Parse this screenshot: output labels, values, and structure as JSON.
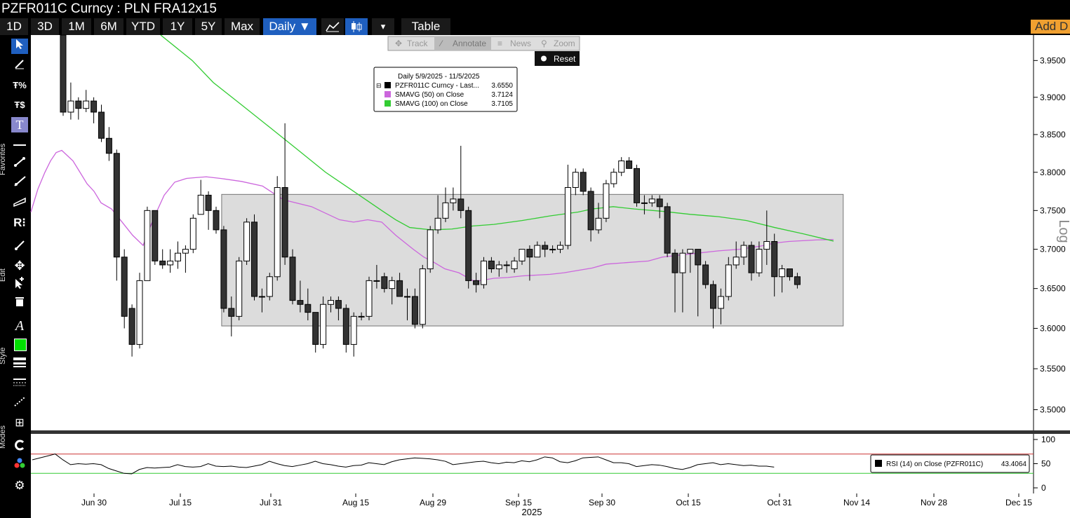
{
  "header": {
    "title": "PZFR011C Curncy : PLN FRA12x15",
    "add_data": "Add D"
  },
  "toolbar": {
    "ranges": [
      "1D",
      "3D",
      "1M",
      "6M",
      "YTD",
      "1Y",
      "5Y",
      "Max"
    ],
    "frequency": "Daily ▼",
    "table_label": "Table",
    "dropdown_arrow": "▾"
  },
  "chart_tools": {
    "track": "Track",
    "annotate": "Annotate",
    "news": "News",
    "zoom": "Zoom",
    "reset": "Reset"
  },
  "side_labels": {
    "favorites": "Favorites",
    "edit": "Edit",
    "style": "Style",
    "modes": "Modes"
  },
  "icons": [
    "cursor-icon",
    "pen-icon",
    "percent-trend-icon",
    "dollar-trend-icon",
    "text-icon",
    "horizontal-line-icon",
    "trend-line-icon",
    "ray-icon",
    "channel-icon",
    "r-menu-icon",
    "brush-icon",
    "move-icon",
    "add-cursor-icon",
    "trash-icon",
    "font-icon",
    "color-swatch-icon",
    "line-width-icon",
    "line-style-icon",
    "lasso-icon",
    "layout-icon",
    "refresh-mode-icon",
    "dots-mode-icon",
    "settings-gear-icon"
  ],
  "colors": {
    "background": "#ffffff",
    "up_candle": "#ffffff",
    "down_candle": "#333333",
    "sma50": "#cc66dd",
    "sma100": "#33cc33",
    "rectangle": "#d9d9d9",
    "rsi_upper": "#cc3333",
    "rsi_lower": "#33cc33",
    "accent": "#1f5fbf"
  },
  "legend": {
    "header": "Daily 5/9/2025 - 11/5/2025",
    "rows": [
      {
        "label": "PZFR011C Curncy - Last...",
        "value": "3.6550",
        "color": "#000000"
      },
      {
        "label": "SMAVG (50)  on Close",
        "value": "3.7124",
        "color": "#cc66dd"
      },
      {
        "label": "SMAVG (100)  on Close",
        "value": "3.7105",
        "color": "#33cc33"
      }
    ]
  },
  "rsi_legend": {
    "label": "RSI (14)  on Close (PZFR011C)",
    "value": "43.4064"
  },
  "log_label": "Log",
  "chart_data": {
    "type": "candlestick",
    "scale": "log",
    "ylim": [
      3.475,
      3.985
    ],
    "y_ticks": [
      "3.9500",
      "3.9000",
      "3.8500",
      "3.8000",
      "3.7500",
      "3.7000",
      "3.6500",
      "3.6000",
      "3.5500",
      "3.5000"
    ],
    "x_ticks": [
      "Jun 30",
      "Jul 15",
      "Jul 31",
      "Aug 15",
      "Aug 29",
      "Sep 15",
      "Sep 30",
      "Oct 15",
      "Oct 31",
      "Nov 14",
      "Nov 28",
      "Dec 15"
    ],
    "year_label": "2025",
    "candles": [
      {
        "o": 3.985,
        "h": 3.995,
        "l": 3.875,
        "c": 3.88
      },
      {
        "o": 3.88,
        "h": 3.92,
        "l": 3.87,
        "c": 3.895
      },
      {
        "o": 3.895,
        "h": 3.9,
        "l": 3.87,
        "c": 3.885
      },
      {
        "o": 3.885,
        "h": 3.91,
        "l": 3.88,
        "c": 3.895
      },
      {
        "o": 3.895,
        "h": 3.9,
        "l": 3.865,
        "c": 3.88
      },
      {
        "o": 3.88,
        "h": 3.89,
        "l": 3.84,
        "c": 3.845
      },
      {
        "o": 3.845,
        "h": 3.86,
        "l": 3.815,
        "c": 3.825
      },
      {
        "o": 3.825,
        "h": 3.83,
        "l": 3.66,
        "c": 3.69
      },
      {
        "o": 3.69,
        "h": 3.7,
        "l": 3.6,
        "c": 3.615
      },
      {
        "o": 3.625,
        "h": 3.63,
        "l": 3.565,
        "c": 3.58
      },
      {
        "o": 3.58,
        "h": 3.67,
        "l": 3.575,
        "c": 3.66
      },
      {
        "o": 3.66,
        "h": 3.755,
        "l": 3.66,
        "c": 3.75
      },
      {
        "o": 3.75,
        "h": 3.75,
        "l": 3.68,
        "c": 3.685
      },
      {
        "o": 3.685,
        "h": 3.7,
        "l": 3.675,
        "c": 3.68
      },
      {
        "o": 3.68,
        "h": 3.7,
        "l": 3.67,
        "c": 3.685
      },
      {
        "o": 3.685,
        "h": 3.71,
        "l": 3.675,
        "c": 3.695
      },
      {
        "o": 3.695,
        "h": 3.705,
        "l": 3.67,
        "c": 3.7
      },
      {
        "o": 3.7,
        "h": 3.745,
        "l": 3.695,
        "c": 3.74
      },
      {
        "o": 3.745,
        "h": 3.79,
        "l": 3.745,
        "c": 3.77
      },
      {
        "o": 3.77,
        "h": 3.775,
        "l": 3.725,
        "c": 3.75
      },
      {
        "o": 3.75,
        "h": 3.755,
        "l": 3.72,
        "c": 3.725
      },
      {
        "o": 3.725,
        "h": 3.73,
        "l": 3.62,
        "c": 3.625
      },
      {
        "o": 3.625,
        "h": 3.64,
        "l": 3.59,
        "c": 3.615
      },
      {
        "o": 3.615,
        "h": 3.69,
        "l": 3.61,
        "c": 3.685
      },
      {
        "o": 3.685,
        "h": 3.74,
        "l": 3.68,
        "c": 3.735
      },
      {
        "o": 3.735,
        "h": 3.745,
        "l": 3.635,
        "c": 3.64
      },
      {
        "o": 3.64,
        "h": 3.65,
        "l": 3.62,
        "c": 3.64
      },
      {
        "o": 3.64,
        "h": 3.67,
        "l": 3.635,
        "c": 3.665
      },
      {
        "o": 3.665,
        "h": 3.795,
        "l": 3.66,
        "c": 3.78
      },
      {
        "o": 3.78,
        "h": 3.865,
        "l": 3.68,
        "c": 3.69
      },
      {
        "o": 3.69,
        "h": 3.7,
        "l": 3.63,
        "c": 3.635
      },
      {
        "o": 3.635,
        "h": 3.66,
        "l": 3.62,
        "c": 3.63
      },
      {
        "o": 3.63,
        "h": 3.65,
        "l": 3.61,
        "c": 3.62
      },
      {
        "o": 3.62,
        "h": 3.62,
        "l": 3.57,
        "c": 3.58
      },
      {
        "o": 3.58,
        "h": 3.64,
        "l": 3.575,
        "c": 3.63
      },
      {
        "o": 3.63,
        "h": 3.64,
        "l": 3.62,
        "c": 3.635
      },
      {
        "o": 3.635,
        "h": 3.64,
        "l": 3.61,
        "c": 3.625
      },
      {
        "o": 3.625,
        "h": 3.63,
        "l": 3.57,
        "c": 3.58
      },
      {
        "o": 3.58,
        "h": 3.62,
        "l": 3.565,
        "c": 3.615
      },
      {
        "o": 3.615,
        "h": 3.62,
        "l": 3.61,
        "c": 3.615
      },
      {
        "o": 3.615,
        "h": 3.665,
        "l": 3.61,
        "c": 3.66
      },
      {
        "o": 3.66,
        "h": 3.68,
        "l": 3.65,
        "c": 3.66
      },
      {
        "o": 3.665,
        "h": 3.67,
        "l": 3.645,
        "c": 3.65
      },
      {
        "o": 3.65,
        "h": 3.665,
        "l": 3.63,
        "c": 3.66
      },
      {
        "o": 3.66,
        "h": 3.67,
        "l": 3.64,
        "c": 3.64
      },
      {
        "o": 3.64,
        "h": 3.65,
        "l": 3.61,
        "c": 3.64
      },
      {
        "o": 3.64,
        "h": 3.65,
        "l": 3.6,
        "c": 3.605
      },
      {
        "o": 3.605,
        "h": 3.68,
        "l": 3.6,
        "c": 3.675
      },
      {
        "o": 3.675,
        "h": 3.73,
        "l": 3.67,
        "c": 3.725
      },
      {
        "o": 3.725,
        "h": 3.77,
        "l": 3.72,
        "c": 3.74
      },
      {
        "o": 3.74,
        "h": 3.78,
        "l": 3.735,
        "c": 3.76
      },
      {
        "o": 3.76,
        "h": 3.78,
        "l": 3.75,
        "c": 3.765
      },
      {
        "o": 3.765,
        "h": 3.835,
        "l": 3.74,
        "c": 3.75
      },
      {
        "o": 3.75,
        "h": 3.755,
        "l": 3.65,
        "c": 3.66
      },
      {
        "o": 3.66,
        "h": 3.67,
        "l": 3.645,
        "c": 3.655
      },
      {
        "o": 3.655,
        "h": 3.69,
        "l": 3.65,
        "c": 3.685
      },
      {
        "o": 3.685,
        "h": 3.69,
        "l": 3.67,
        "c": 3.675
      },
      {
        "o": 3.675,
        "h": 3.685,
        "l": 3.665,
        "c": 3.68
      },
      {
        "o": 3.68,
        "h": 3.685,
        "l": 3.67,
        "c": 3.68
      },
      {
        "o": 3.675,
        "h": 3.69,
        "l": 3.67,
        "c": 3.685
      },
      {
        "o": 3.685,
        "h": 3.7,
        "l": 3.68,
        "c": 3.7
      },
      {
        "o": 3.7,
        "h": 3.705,
        "l": 3.66,
        "c": 3.69
      },
      {
        "o": 3.69,
        "h": 3.71,
        "l": 3.69,
        "c": 3.705
      },
      {
        "o": 3.705,
        "h": 3.71,
        "l": 3.69,
        "c": 3.7
      },
      {
        "o": 3.7,
        "h": 3.705,
        "l": 3.695,
        "c": 3.7
      },
      {
        "o": 3.7,
        "h": 3.71,
        "l": 3.695,
        "c": 3.705
      },
      {
        "o": 3.705,
        "h": 3.81,
        "l": 3.7,
        "c": 3.78
      },
      {
        "o": 3.78,
        "h": 3.805,
        "l": 3.77,
        "c": 3.8
      },
      {
        "o": 3.8,
        "h": 3.805,
        "l": 3.77,
        "c": 3.775
      },
      {
        "o": 3.775,
        "h": 3.78,
        "l": 3.71,
        "c": 3.725
      },
      {
        "o": 3.725,
        "h": 3.76,
        "l": 3.72,
        "c": 3.74
      },
      {
        "o": 3.74,
        "h": 3.79,
        "l": 3.735,
        "c": 3.785
      },
      {
        "o": 3.785,
        "h": 3.805,
        "l": 3.78,
        "c": 3.8
      },
      {
        "o": 3.8,
        "h": 3.82,
        "l": 3.795,
        "c": 3.815
      },
      {
        "o": 3.815,
        "h": 3.82,
        "l": 3.805,
        "c": 3.805
      },
      {
        "o": 3.805,
        "h": 3.81,
        "l": 3.755,
        "c": 3.76
      },
      {
        "o": 3.76,
        "h": 3.77,
        "l": 3.745,
        "c": 3.76
      },
      {
        "o": 3.76,
        "h": 3.77,
        "l": 3.755,
        "c": 3.765
      },
      {
        "o": 3.765,
        "h": 3.77,
        "l": 3.74,
        "c": 3.755
      },
      {
        "o": 3.755,
        "h": 3.76,
        "l": 3.69,
        "c": 3.695
      },
      {
        "o": 3.695,
        "h": 3.7,
        "l": 3.62,
        "c": 3.67
      },
      {
        "o": 3.67,
        "h": 3.7,
        "l": 3.62,
        "c": 3.695
      },
      {
        "o": 3.695,
        "h": 3.7,
        "l": 3.67,
        "c": 3.7
      },
      {
        "o": 3.7,
        "h": 3.7,
        "l": 3.615,
        "c": 3.68
      },
      {
        "o": 3.68,
        "h": 3.685,
        "l": 3.65,
        "c": 3.655
      },
      {
        "o": 3.655,
        "h": 3.66,
        "l": 3.6,
        "c": 3.625
      },
      {
        "o": 3.625,
        "h": 3.65,
        "l": 3.605,
        "c": 3.64
      },
      {
        "o": 3.64,
        "h": 3.69,
        "l": 3.635,
        "c": 3.68
      },
      {
        "o": 3.68,
        "h": 3.71,
        "l": 3.675,
        "c": 3.69
      },
      {
        "o": 3.69,
        "h": 3.71,
        "l": 3.68,
        "c": 3.705
      },
      {
        "o": 3.705,
        "h": 3.71,
        "l": 3.66,
        "c": 3.67
      },
      {
        "o": 3.67,
        "h": 3.71,
        "l": 3.665,
        "c": 3.7
      },
      {
        "o": 3.7,
        "h": 3.75,
        "l": 3.68,
        "c": 3.71
      },
      {
        "o": 3.71,
        "h": 3.72,
        "l": 3.64,
        "c": 3.665
      },
      {
        "o": 3.665,
        "h": 3.68,
        "l": 3.645,
        "c": 3.675
      },
      {
        "o": 3.675,
        "h": 3.675,
        "l": 3.66,
        "c": 3.665
      },
      {
        "o": 3.665,
        "h": 3.67,
        "l": 3.65,
        "c": 3.655
      }
    ],
    "sma50": [
      [
        0,
        3.748
      ],
      [
        10,
        3.778
      ],
      [
        20,
        3.8
      ],
      [
        28,
        3.815
      ],
      [
        36,
        3.826
      ],
      [
        44,
        3.829
      ],
      [
        52,
        3.822
      ],
      [
        60,
        3.815
      ],
      [
        70,
        3.8
      ],
      [
        80,
        3.785
      ],
      [
        90,
        3.775
      ],
      [
        100,
        3.76
      ],
      [
        115,
        3.752
      ],
      [
        130,
        3.735
      ],
      [
        145,
        3.718
      ],
      [
        160,
        3.705
      ],
      [
        175,
        3.74
      ],
      [
        190,
        3.77
      ],
      [
        205,
        3.787
      ],
      [
        222,
        3.792
      ],
      [
        235,
        3.793
      ],
      [
        250,
        3.794
      ],
      [
        270,
        3.792
      ],
      [
        300,
        3.788
      ],
      [
        330,
        3.782
      ],
      [
        360,
        3.764
      ],
      [
        400,
        3.755
      ],
      [
        440,
        3.738
      ],
      [
        460,
        3.735
      ],
      [
        480,
        3.738
      ],
      [
        500,
        3.735
      ],
      [
        520,
        3.718
      ],
      [
        545,
        3.7
      ],
      [
        560,
        3.69
      ],
      [
        575,
        3.683
      ],
      [
        590,
        3.675
      ],
      [
        610,
        3.67
      ],
      [
        630,
        3.66
      ],
      [
        640,
        3.66
      ],
      [
        660,
        3.663
      ],
      [
        680,
        3.664
      ],
      [
        700,
        3.666
      ],
      [
        720,
        3.667
      ],
      [
        740,
        3.668
      ],
      [
        760,
        3.67
      ],
      [
        780,
        3.673
      ],
      [
        800,
        3.676
      ],
      [
        820,
        3.681
      ],
      [
        850,
        3.683
      ],
      [
        880,
        3.685
      ],
      [
        900,
        3.69
      ],
      [
        920,
        3.692
      ],
      [
        950,
        3.695
      ],
      [
        980,
        3.698
      ],
      [
        1010,
        3.7
      ],
      [
        1040,
        3.704
      ],
      [
        1060,
        3.708
      ],
      [
        1080,
        3.71
      ],
      [
        1100,
        3.711
      ],
      [
        1120,
        3.712
      ],
      [
        1144,
        3.7124
      ]
    ],
    "sma100": [
      [
        185,
        3.985
      ],
      [
        230,
        3.95
      ],
      [
        260,
        3.92
      ],
      [
        300,
        3.89
      ],
      [
        340,
        3.86
      ],
      [
        380,
        3.83
      ],
      [
        420,
        3.8
      ],
      [
        460,
        3.775
      ],
      [
        500,
        3.75
      ],
      [
        520,
        3.738
      ],
      [
        540,
        3.728
      ],
      [
        570,
        3.725
      ],
      [
        600,
        3.726
      ],
      [
        630,
        3.73
      ],
      [
        660,
        3.732
      ],
      [
        700,
        3.737
      ],
      [
        740,
        3.743
      ],
      [
        780,
        3.748
      ],
      [
        800,
        3.752
      ],
      [
        830,
        3.755
      ],
      [
        860,
        3.752
      ],
      [
        900,
        3.749
      ],
      [
        940,
        3.745
      ],
      [
        980,
        3.742
      ],
      [
        1020,
        3.737
      ],
      [
        1060,
        3.728
      ],
      [
        1100,
        3.72
      ],
      [
        1144,
        3.7105
      ]
    ],
    "box": {
      "y_top": 3.771,
      "y_bottom": 3.603
    },
    "rsi": {
      "ylim": [
        0,
        100
      ],
      "ticks": [
        "100",
        "50",
        "0"
      ],
      "overbought": 70,
      "oversold": 30,
      "values": [
        58,
        62,
        66,
        70,
        58,
        48,
        50,
        49,
        50,
        48,
        40,
        35,
        30,
        29,
        38,
        42,
        41,
        42,
        43,
        48,
        44,
        43,
        44,
        50,
        45,
        44,
        45,
        43,
        42,
        45,
        48,
        55,
        50,
        46,
        44,
        47,
        50,
        55,
        50,
        48,
        45,
        43,
        46,
        47,
        52,
        50,
        48,
        54,
        58,
        60,
        62,
        61,
        60,
        58,
        55,
        48,
        50,
        52,
        54,
        55,
        52,
        50,
        53,
        52,
        56,
        54,
        58,
        64,
        62,
        54,
        52,
        56,
        62,
        63,
        64,
        58,
        52,
        52,
        50,
        44,
        46,
        48,
        47,
        44,
        40,
        38,
        42,
        48,
        50,
        52,
        48,
        50,
        48,
        46,
        47,
        45,
        45,
        43
      ]
    }
  }
}
